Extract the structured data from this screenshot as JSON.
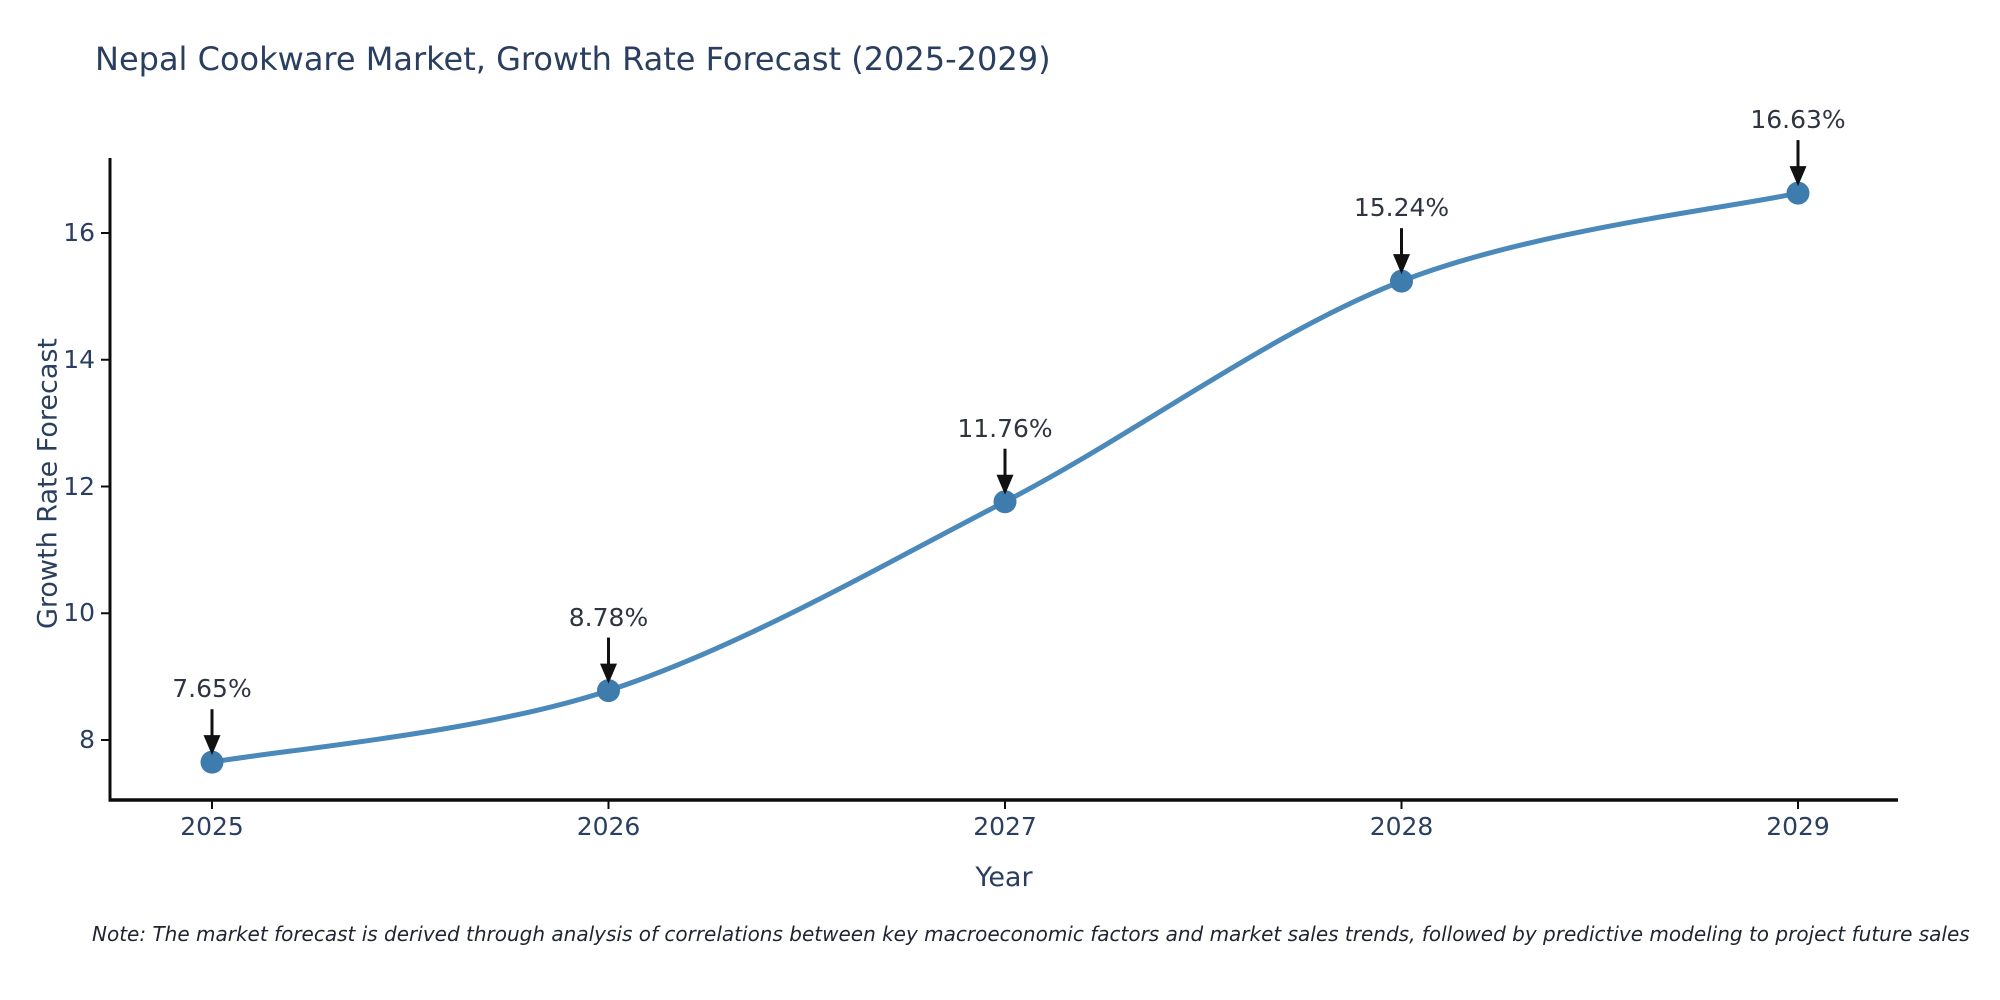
{
  "title": "Nepal Cookware Market, Growth Rate Forecast (2025-2029)",
  "note": "Note: The market forecast is derived through analysis of correlations between key macroeconomic factors and market sales trends, followed by predictive modeling to project future sales",
  "chart_data": {
    "type": "line",
    "title": "Nepal Cookware Market, Growth Rate Forecast (2025-2029)",
    "xlabel": "Year",
    "ylabel": "Growth Rate Forecast",
    "categories": [
      2025,
      2026,
      2027,
      2028,
      2029
    ],
    "values": [
      7.65,
      8.78,
      11.76,
      15.24,
      16.63
    ],
    "point_labels": [
      "7.65%",
      "8.78%",
      "11.76%",
      "15.24%",
      "16.63%"
    ],
    "yticks": [
      8,
      10,
      12,
      14,
      16
    ],
    "ylim": [
      7.05,
      17.15
    ],
    "grid": false,
    "legend": "none",
    "marker": "circle",
    "annotation_style": "value label with downward arrow to each point",
    "colors": {
      "line": "#4a89ba",
      "marker": "#3e7cae",
      "spine": "#0d0d0d",
      "arrow": "#111111",
      "axis_text": "#2a3f5f",
      "annotation_text": "#2e3440",
      "background": "#ffffff"
    }
  }
}
